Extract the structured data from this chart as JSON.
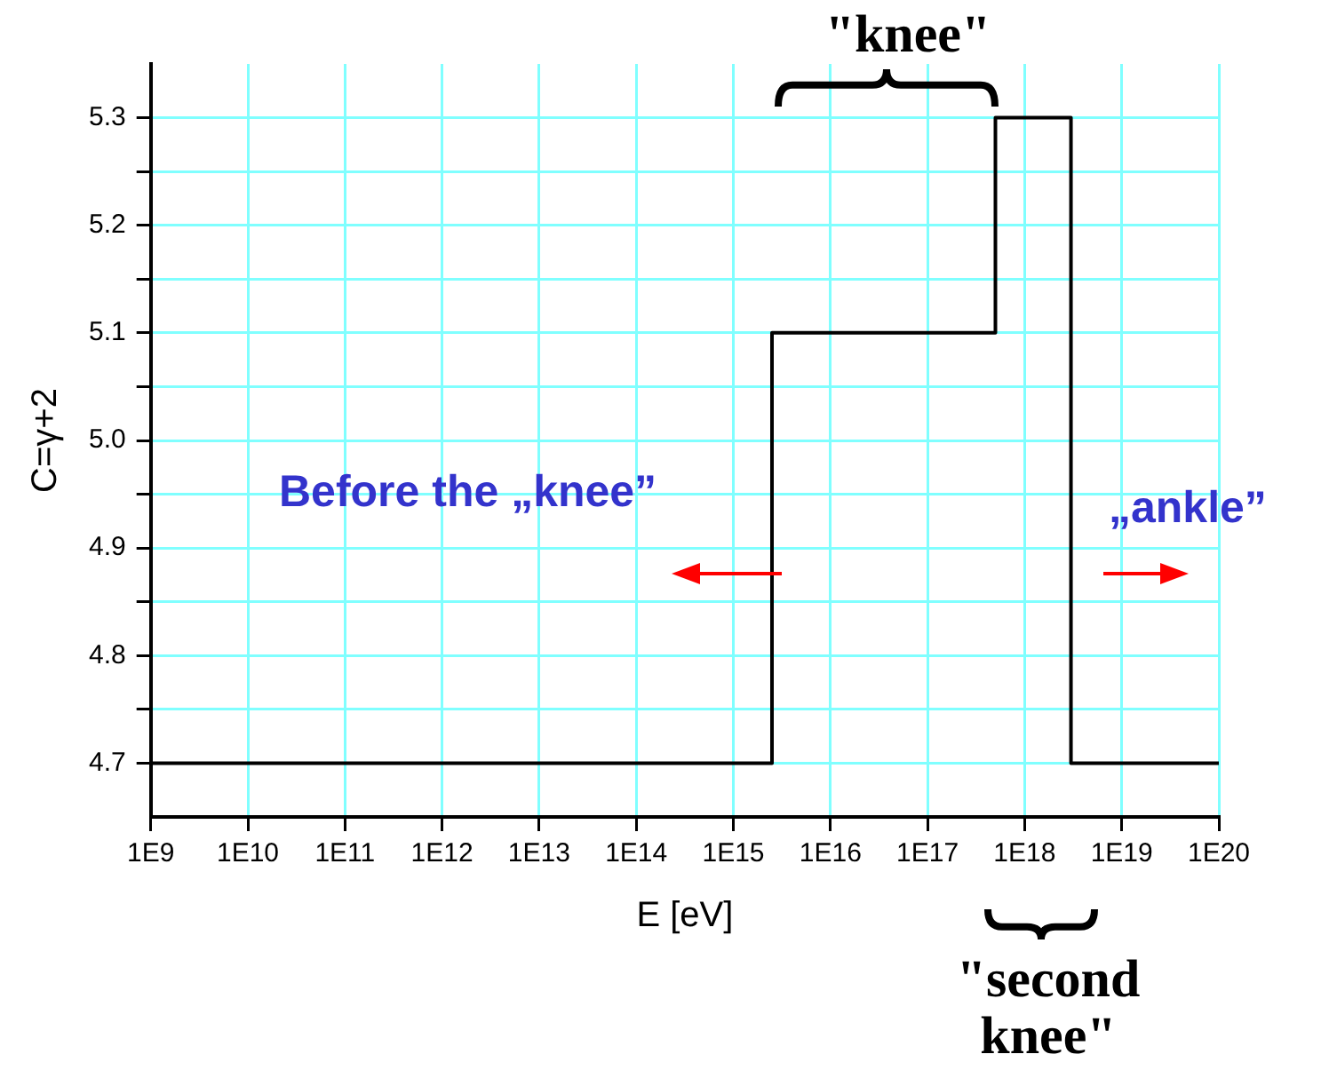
{
  "chart_data": {
    "type": "step",
    "xlabel": "E [eV]",
    "ylabel": "C=γ+2",
    "x": [
      1000000000.0,
      2500000000000000.0,
      5e+17,
      3e+18,
      1e+20
    ],
    "series": [
      {
        "color": "#000000",
        "values": [
          4.7,
          5.1,
          5.3,
          4.7,
          4.7
        ]
      }
    ],
    "log": "x",
    "xlim": [
      1000000000.0,
      1e+20
    ],
    "xticks": [
      {
        "value": 1000000000.0,
        "label": "1E9"
      },
      {
        "value": 10000000000.0,
        "label": "1E10"
      },
      {
        "value": 100000000000.0,
        "label": "1E11"
      },
      {
        "value": 1000000000000.0,
        "label": "1E12"
      },
      {
        "value": 10000000000000.0,
        "label": "1E13"
      },
      {
        "value": 100000000000000.0,
        "label": "1E14"
      },
      {
        "value": 1000000000000000.0,
        "label": "1E15"
      },
      {
        "value": 1e+16,
        "label": "1E16"
      },
      {
        "value": 1e+17,
        "label": "1E17"
      },
      {
        "value": 1e+18,
        "label": "1E18"
      },
      {
        "value": 1e+19,
        "label": "1E19"
      },
      {
        "value": 1e+20,
        "label": "1E20"
      }
    ],
    "ylim": [
      4.65,
      5.35
    ],
    "yticks": [
      {
        "value": 4.7,
        "label": "4.7"
      },
      {
        "value": 4.75,
        "label": null
      },
      {
        "value": 4.8,
        "label": "4.8"
      },
      {
        "value": 4.85,
        "label": null
      },
      {
        "value": 4.9,
        "label": "4.9"
      },
      {
        "value": 4.95,
        "label": null
      },
      {
        "value": 5.0,
        "label": "5.0"
      },
      {
        "value": 5.05,
        "label": null
      },
      {
        "value": 5.1,
        "label": "5.1"
      },
      {
        "value": 5.15,
        "label": null
      },
      {
        "value": 5.2,
        "label": "5.2"
      },
      {
        "value": 5.25,
        "label": null
      },
      {
        "value": 5.3,
        "label": "5.3"
      }
    ],
    "grid": true,
    "marker": "none",
    "line_style": "solid",
    "legend": false,
    "annotations": [
      "\"knee\"",
      "Before the „knee”",
      "„ankle”",
      "\"second knee\""
    ]
  }
}
